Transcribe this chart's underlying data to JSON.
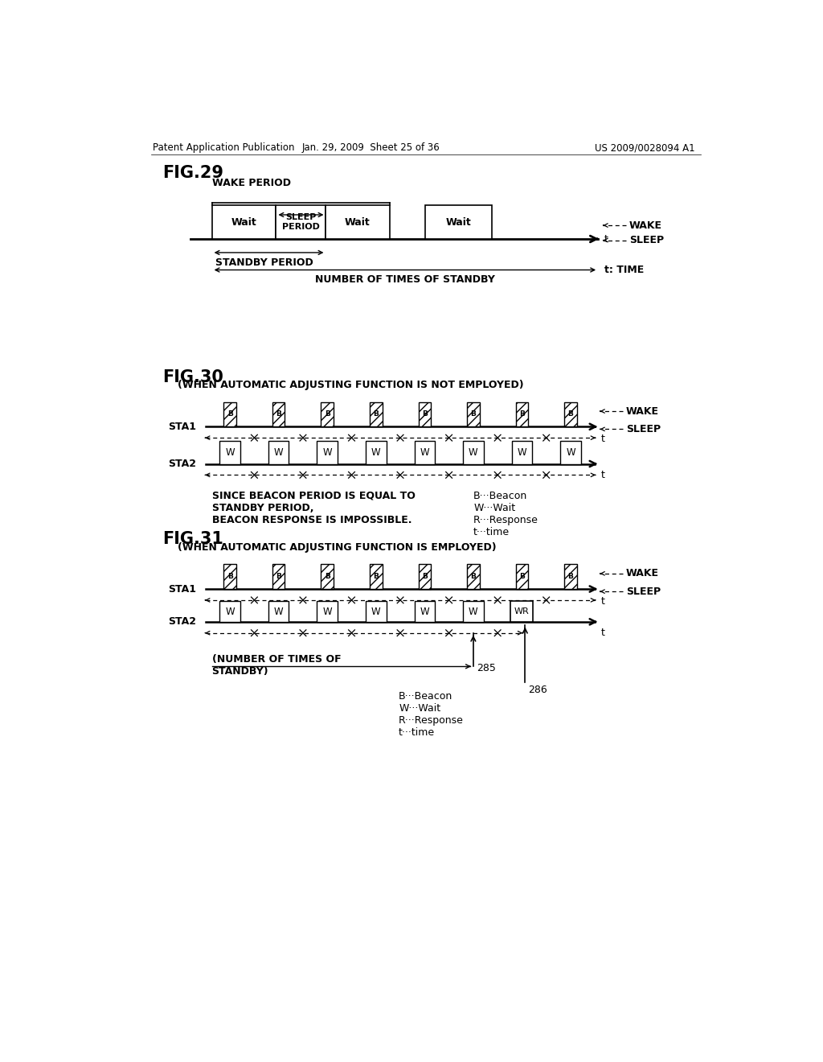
{
  "bg_color": "#ffffff",
  "header_left": "Patent Application Publication",
  "header_mid": "Jan. 29, 2009  Sheet 25 of 36",
  "header_right": "US 2009/0028094 A1",
  "fig29_title": "FIG.29",
  "fig29_wake_period_label": "WAKE PERIOD",
  "fig29_standby_period_label": "STANDBY PERIOD",
  "fig29_number_of_standby_label": "NUMBER OF TIMES OF STANDBY",
  "fig29_wake_label": "WAKE",
  "fig29_sleep_label": "SLEEP",
  "fig29_t_label": "t",
  "fig29_t_time_label": "t: TIME",
  "fig30_title": "FIG.30",
  "fig30_subtitle": "(WHEN AUTOMATIC ADJUSTING FUNCTION IS NOT EMPLOYED)",
  "fig30_sta1_label": "STA1",
  "fig30_sta2_label": "STA2",
  "fig30_wake_label": "WAKE",
  "fig30_sleep_label": "SLEEP",
  "fig30_t1_label": "t",
  "fig30_t2_label": "t",
  "fig30_note1": "SINCE BEACON PERIOD IS EQUAL TO\nSTANDBY PERIOD,\nBEACON RESPONSE IS IMPOSSIBLE.",
  "fig30_legend": "B···Beacon\nW···Wait\nR···Response\nt···time",
  "fig31_title": "FIG.31",
  "fig31_subtitle": "(WHEN AUTOMATIC ADJUSTING FUNCTION IS EMPLOYED)",
  "fig31_sta1_label": "STA1",
  "fig31_sta2_label": "STA2",
  "fig31_wake_label": "WAKE",
  "fig31_sleep_label": "SLEEP",
  "fig31_t1_label": "t",
  "fig31_t2_label": "t",
  "fig31_note_standby": "(NUMBER OF TIMES OF\nSTANDBY)",
  "fig31_label_285": "285",
  "fig31_label_286": "286",
  "fig31_legend": "B···Beacon\nW···Wait\nR···Response\nt···time"
}
